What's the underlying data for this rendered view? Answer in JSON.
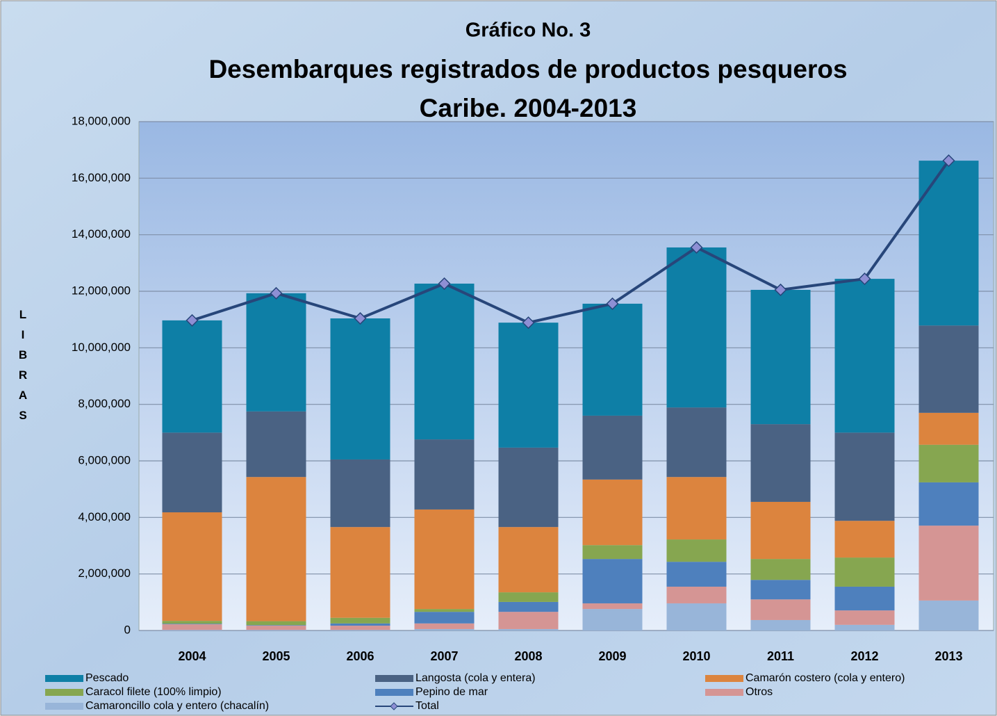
{
  "chart_data": {
    "type": "stacked-bar-line",
    "title_lines": [
      "Gráfico No. 3",
      "Desembarques registrados de productos pesqueros",
      "Caribe.  2004-2013"
    ],
    "y_label": "LIBRAS",
    "categories": [
      "2004",
      "2005",
      "2006",
      "2007",
      "2008",
      "2009",
      "2010",
      "2011",
      "2012",
      "2013"
    ],
    "ylim": [
      0,
      18000000
    ],
    "yticks": [
      0,
      {
        "value": 2000000,
        "label": "2,000,000"
      },
      {
        "value": 4000000,
        "label": "4,000,000"
      },
      {
        "value": 6000000,
        "label": "6,000,000"
      },
      {
        "value": 8000000,
        "label": "8,000,000"
      },
      {
        "value": 10000000,
        "label": "10,000,000"
      },
      {
        "value": 12000000,
        "label": "12,000,000"
      },
      {
        "value": 14000000,
        "label": "14,000,000"
      },
      {
        "value": 16000000,
        "label": "16,000,000"
      },
      {
        "value": 18000000,
        "label": "18,000,000"
      }
    ],
    "grid": true,
    "legend": "bottom",
    "series": [
      {
        "name": "Camaroncillo cola y entero (chacalín)",
        "color": "#98b5d9",
        "values": [
          20000,
          20000,
          20000,
          50000,
          50000,
          760000,
          960000,
          370000,
          200000,
          1060000
        ]
      },
      {
        "name": "Otros",
        "color": "#d59594",
        "values": [
          200000,
          150000,
          150000,
          200000,
          610000,
          200000,
          590000,
          730000,
          510000,
          2650000
        ]
      },
      {
        "name": "Pepino de mar",
        "color": "#4e80bd",
        "values": [
          20000,
          20000,
          80000,
          410000,
          350000,
          1570000,
          880000,
          690000,
          840000,
          1530000
        ]
      },
      {
        "name": "Caracol filete (100% limpio)",
        "color": "#86a650",
        "values": [
          100000,
          140000,
          200000,
          100000,
          340000,
          490000,
          790000,
          740000,
          1030000,
          1330000
        ]
      },
      {
        "name": "Camarón costero (cola y entero)",
        "color": "#dc843e",
        "values": [
          3840000,
          5100000,
          3210000,
          3520000,
          2310000,
          2320000,
          2210000,
          2020000,
          1300000,
          1130000
        ]
      },
      {
        "name": "Langosta (cola y entera)",
        "color": "#4a6283",
        "values": [
          2820000,
          2320000,
          2390000,
          2480000,
          2810000,
          2260000,
          2460000,
          2750000,
          3120000,
          3090000
        ]
      },
      {
        "name": "Pescado",
        "color": "#0e7fa6",
        "values": [
          3970000,
          4180000,
          4990000,
          5510000,
          4420000,
          3960000,
          5660000,
          4750000,
          5440000,
          5830000
        ]
      },
      {
        "name": "Total",
        "color": "#27467a",
        "kind": "line",
        "values": [
          10970000,
          11930000,
          11040000,
          12270000,
          10890000,
          11560000,
          13550000,
          12050000,
          12440000,
          16620000
        ]
      }
    ],
    "legend_order": [
      6,
      5,
      4,
      3,
      2,
      1,
      0,
      7
    ]
  }
}
